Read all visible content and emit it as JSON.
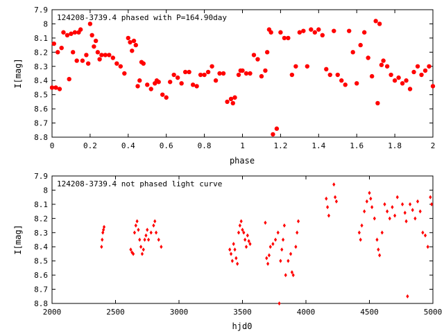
{
  "chart_data": [
    {
      "type": "scatter",
      "title": "124208-3739.4 phased with P=164.90day",
      "xlabel": "phase",
      "ylabel": "I[mag]",
      "xlim": [
        0,
        2
      ],
      "ylim": [
        7.9,
        8.8
      ],
      "y_inverted": true,
      "x_ticks": [
        "0",
        "0.2",
        "0.4",
        "0.6",
        "0.8",
        "1",
        "1.2",
        "1.4",
        "1.6",
        "1.8",
        "2"
      ],
      "x_tick_values": [
        0,
        0.2,
        0.4,
        0.6,
        0.8,
        1.0,
        1.2,
        1.4,
        1.6,
        1.8,
        2.0
      ],
      "y_ticks": [
        "7.9",
        "8",
        "8.1",
        "8.2",
        "8.3",
        "8.4",
        "8.5",
        "8.6",
        "8.7",
        "8.8"
      ],
      "y_tick_values": [
        7.9,
        8.0,
        8.1,
        8.2,
        8.3,
        8.4,
        8.5,
        8.6,
        8.7,
        8.8
      ],
      "marker_color": "#ff0000",
      "marker": "filled-star",
      "series": [
        {
          "x": [
            0.0,
            0.02,
            0.04,
            0.01,
            0.03,
            0.05,
            0.06,
            0.08,
            0.1,
            0.09,
            0.12,
            0.14,
            0.11,
            0.13,
            0.15,
            0.16,
            0.18,
            0.19,
            0.2,
            0.21,
            0.22,
            0.23,
            0.25,
            0.24,
            0.26,
            0.28,
            0.3,
            0.32,
            0.34,
            0.36,
            0.38,
            0.4,
            0.41,
            0.42,
            0.44,
            0.43,
            0.45,
            0.46,
            0.47,
            0.48,
            0.5,
            0.52,
            0.54,
            0.55,
            0.56,
            0.58,
            0.6,
            0.62,
            0.64,
            0.66,
            0.68,
            0.7,
            0.72,
            0.74,
            0.76,
            0.78,
            0.8,
            0.82,
            0.84,
            0.86,
            0.88,
            0.9,
            0.92,
            0.94,
            0.95,
            0.96,
            0.98,
            0.99,
            1.0,
            1.02,
            1.04,
            1.06,
            1.08,
            1.1,
            1.12,
            1.13,
            1.14,
            1.15,
            1.16,
            1.18,
            1.2,
            1.22,
            1.24,
            1.26,
            1.28,
            1.3,
            1.32,
            1.34,
            1.36,
            1.38,
            1.4,
            1.42,
            1.44,
            1.46,
            1.48,
            1.5,
            1.52,
            1.54,
            1.56,
            1.58,
            1.6,
            1.62,
            1.64,
            1.66,
            1.68,
            1.7,
            1.71,
            1.72,
            1.73,
            1.74,
            1.76,
            1.78,
            1.8,
            1.82,
            1.84,
            1.86,
            1.88,
            1.9,
            1.92,
            1.94,
            1.96,
            1.98,
            2.0
          ],
          "y": [
            8.45,
            8.45,
            8.46,
            8.14,
            8.2,
            8.17,
            8.06,
            8.08,
            8.07,
            8.39,
            8.06,
            8.06,
            8.2,
            8.26,
            8.04,
            8.26,
            8.22,
            8.28,
            8.0,
            8.08,
            8.16,
            8.12,
            8.25,
            8.2,
            8.22,
            8.22,
            8.22,
            8.24,
            8.28,
            8.3,
            8.35,
            8.1,
            8.13,
            8.19,
            8.15,
            8.12,
            8.44,
            8.4,
            8.27,
            8.28,
            8.43,
            8.46,
            8.42,
            8.4,
            8.41,
            8.5,
            8.52,
            8.41,
            8.36,
            8.38,
            8.42,
            8.34,
            8.34,
            8.43,
            8.44,
            8.36,
            8.36,
            8.34,
            8.3,
            8.4,
            8.35,
            8.35,
            8.55,
            8.53,
            8.56,
            8.52,
            8.36,
            8.33,
            8.33,
            8.35,
            8.35,
            8.22,
            8.25,
            8.37,
            8.33,
            8.2,
            8.04,
            8.06,
            8.78,
            8.74,
            8.06,
            8.1,
            8.1,
            8.36,
            8.3,
            8.06,
            8.05,
            8.3,
            8.04,
            8.06,
            8.04,
            8.08,
            8.32,
            8.36,
            8.05,
            8.36,
            8.4,
            8.43,
            8.05,
            8.2,
            8.42,
            8.15,
            8.06,
            8.24,
            8.37,
            7.98,
            8.56,
            8.0,
            8.29,
            8.26,
            8.3,
            8.36,
            8.4,
            8.38,
            8.42,
            8.4,
            8.46,
            8.34,
            8.3,
            8.36,
            8.33,
            8.3,
            8.44
          ]
        }
      ]
    },
    {
      "type": "scatter",
      "title": "124208-3739.4 not phased light curve",
      "xlabel": "hjd0",
      "ylabel": "I[mag]",
      "xlim": [
        2000,
        5000
      ],
      "ylim": [
        7.9,
        8.8
      ],
      "y_inverted": true,
      "x_ticks": [
        "2000",
        "2500",
        "3000",
        "3500",
        "4000",
        "4500",
        "5000"
      ],
      "x_tick_values": [
        2000,
        2500,
        3000,
        3500,
        4000,
        4500,
        5000
      ],
      "y_ticks": [
        "7.9",
        "8",
        "8.1",
        "8.2",
        "8.3",
        "8.4",
        "8.5",
        "8.6",
        "8.7",
        "8.8"
      ],
      "y_tick_values": [
        7.9,
        8.0,
        8.1,
        8.2,
        8.3,
        8.4,
        8.5,
        8.6,
        8.7,
        8.8
      ],
      "marker_color": "#ff0000",
      "marker": "filled-diamond",
      "series": [
        {
          "x": [
            2390,
            2395,
            2400,
            2405,
            2410,
            2620,
            2630,
            2640,
            2650,
            2660,
            2670,
            2680,
            2690,
            2700,
            2710,
            2720,
            2730,
            2740,
            2750,
            2760,
            2780,
            2800,
            2810,
            2820,
            2840,
            2860,
            3400,
            3410,
            3420,
            3430,
            3440,
            3450,
            3460,
            3470,
            3480,
            3490,
            3500,
            3510,
            3520,
            3530,
            3540,
            3550,
            3560,
            3680,
            3690,
            3700,
            3710,
            3720,
            3740,
            3760,
            3780,
            3790,
            3800,
            3810,
            3820,
            3830,
            3840,
            3860,
            3880,
            3890,
            3900,
            3920,
            3930,
            3940,
            4160,
            4170,
            4180,
            4220,
            4230,
            4240,
            4420,
            4430,
            4440,
            4460,
            4480,
            4500,
            4510,
            4520,
            4540,
            4560,
            4570,
            4580,
            4600,
            4620,
            4640,
            4660,
            4680,
            4700,
            4720,
            4760,
            4780,
            4790,
            4800,
            4820,
            4840,
            4860,
            4880,
            4900,
            4920,
            4940,
            4960,
            4980,
            4990
          ],
          "y": [
            8.4,
            8.35,
            8.3,
            8.28,
            8.26,
            8.42,
            8.44,
            8.45,
            8.3,
            8.25,
            8.22,
            8.28,
            8.35,
            8.4,
            8.45,
            8.42,
            8.35,
            8.32,
            8.28,
            8.35,
            8.3,
            8.25,
            8.22,
            8.3,
            8.35,
            8.4,
            8.42,
            8.45,
            8.5,
            8.38,
            8.42,
            8.48,
            8.52,
            8.3,
            8.25,
            8.22,
            8.28,
            8.3,
            8.35,
            8.4,
            8.32,
            8.36,
            8.38,
            8.23,
            8.48,
            8.52,
            8.46,
            8.4,
            8.38,
            8.35,
            8.3,
            8.8,
            8.5,
            8.42,
            8.35,
            8.25,
            8.6,
            8.5,
            8.45,
            8.58,
            8.6,
            8.4,
            8.3,
            8.22,
            8.06,
            8.12,
            8.18,
            7.96,
            8.05,
            8.08,
            8.3,
            8.35,
            8.25,
            8.15,
            8.08,
            8.02,
            8.06,
            8.12,
            8.2,
            8.35,
            8.42,
            8.46,
            8.3,
            8.1,
            8.15,
            8.2,
            8.12,
            8.18,
            8.05,
            8.1,
            8.16,
            8.22,
            8.75,
            8.1,
            8.14,
            8.2,
            8.08,
            8.15,
            8.3,
            8.32,
            8.4,
            8.05,
            8.1
          ]
        }
      ]
    }
  ]
}
